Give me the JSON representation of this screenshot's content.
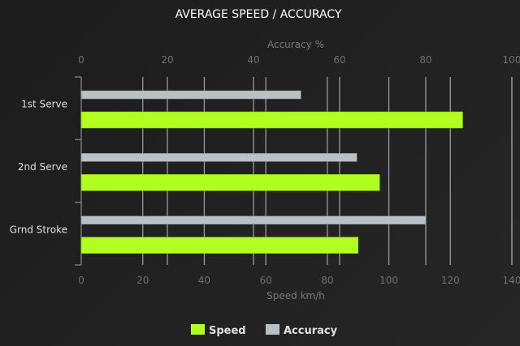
{
  "chart_data": {
    "type": "bar",
    "orientation": "horizontal",
    "title": "AVERAGE SPEED / ACCURACY",
    "categories": [
      "1st Serve",
      "2nd Serve",
      "Grnd Stroke"
    ],
    "series": [
      {
        "name": "Speed",
        "axis": "bottom",
        "color": "#b0ff20",
        "values": [
          124,
          97,
          90
        ]
      },
      {
        "name": "Accuracy",
        "axis": "top",
        "color": "#bcc0c2",
        "values": [
          51,
          64,
          80
        ]
      }
    ],
    "xlabel_bottom": "Speed km/h",
    "xlim_bottom": [
      0,
      140
    ],
    "xticks_bottom": [
      "0",
      "20",
      "40",
      "60",
      "80",
      "100",
      "120",
      "140"
    ],
    "xlabel_top": "Accuracy %",
    "xlim_top": [
      0,
      100
    ],
    "xticks_top": [
      "0",
      "20",
      "40",
      "60",
      "80",
      "100"
    ],
    "grid": true,
    "legend": "bottom-center"
  }
}
